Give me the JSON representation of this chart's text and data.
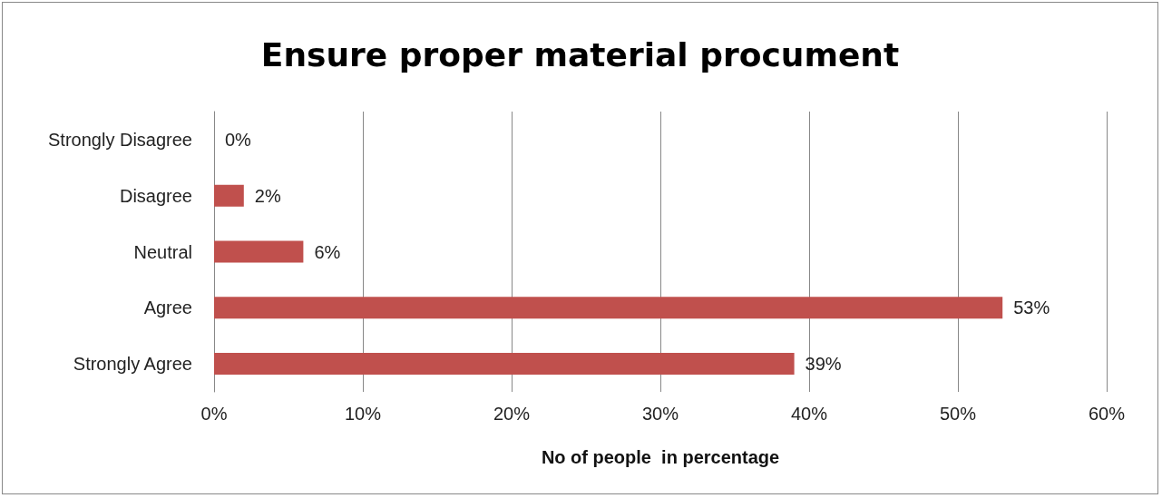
{
  "chart_data": {
    "type": "bar",
    "title": "Ensure proper material procument",
    "xlabel": "No of people  in percentage",
    "orientation": "horizontal",
    "categories": [
      "Strongly Disagree",
      "Disagree",
      "Neutral",
      "Agree",
      "Strongly Agree"
    ],
    "values": [
      0,
      2,
      6,
      53,
      39
    ],
    "color": "#c0504d",
    "value_labels": [
      "0%",
      "2%",
      "6%",
      "53%",
      "39%"
    ],
    "xlim": [
      0,
      60
    ],
    "xticks": [
      {
        "value": 0,
        "label": "0%"
      },
      {
        "value": 10,
        "label": "10%"
      },
      {
        "value": 20,
        "label": "20%"
      },
      {
        "value": 30,
        "label": "30%"
      },
      {
        "value": 40,
        "label": "40%"
      },
      {
        "value": 50,
        "label": "50%"
      },
      {
        "value": 60,
        "label": "60%"
      }
    ],
    "grid": "x"
  }
}
